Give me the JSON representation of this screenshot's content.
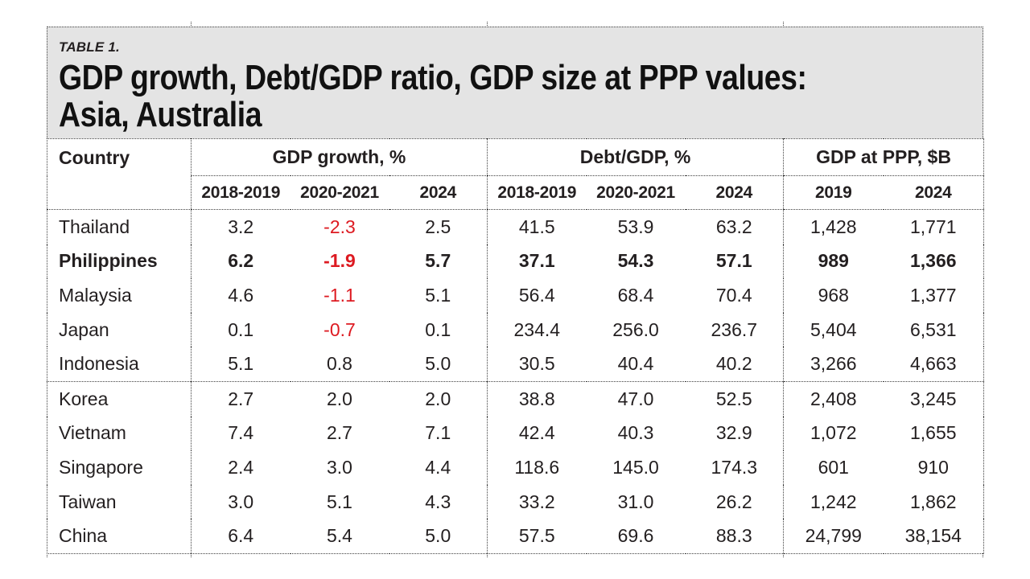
{
  "title_block": {
    "kicker": "TABLE 1.",
    "line1": "GDP growth, Debt/GDP ratio, GDP size at PPP values:",
    "line2": "Asia, Australia"
  },
  "header": {
    "country": "Country",
    "groups": [
      {
        "key": "gdp_growth",
        "label": "GDP growth, %",
        "cols": [
          "2018-2019",
          "2020-2021",
          "2024"
        ]
      },
      {
        "key": "debt_gdp",
        "label": "Debt/GDP, %",
        "cols": [
          "2018-2019",
          "2020-2021",
          "2024"
        ]
      },
      {
        "key": "gdp_ppp",
        "label": "GDP at PPP, $B",
        "cols": [
          "2019",
          "2024"
        ]
      }
    ]
  },
  "colors": {
    "negative_value": "#dd1a21",
    "title_background": "#e4e4e4",
    "text": "#231f20"
  },
  "chart_data": {
    "type": "table",
    "title": "GDP growth, Debt/GDP ratio, GDP size at PPP values: Asia, Australia",
    "kicker": "TABLE 1.",
    "column_groups": [
      "GDP growth, %",
      "Debt/GDP, %",
      "GDP at PPP, $B"
    ],
    "columns": [
      "Country",
      "GDP growth % 2018-2019",
      "GDP growth % 2020-2021",
      "GDP growth % 2024",
      "Debt/GDP % 2018-2019",
      "Debt/GDP % 2020-2021",
      "Debt/GDP % 2024",
      "GDP at PPP $B 2019",
      "GDP at PPP $B 2024"
    ],
    "rows": [
      {
        "country": "Thailand",
        "section": 1,
        "bold": false,
        "gdp_growth": [
          3.2,
          -2.3,
          2.5
        ],
        "debt_gdp": [
          41.5,
          53.9,
          63.2
        ],
        "gdp_ppp": [
          1428,
          1771
        ]
      },
      {
        "country": "Philippines",
        "section": 1,
        "bold": true,
        "gdp_growth": [
          6.2,
          -1.9,
          5.7
        ],
        "debt_gdp": [
          37.1,
          54.3,
          57.1
        ],
        "gdp_ppp": [
          989,
          1366
        ]
      },
      {
        "country": "Malaysia",
        "section": 1,
        "bold": false,
        "gdp_growth": [
          4.6,
          -1.1,
          5.1
        ],
        "debt_gdp": [
          56.4,
          68.4,
          70.4
        ],
        "gdp_ppp": [
          968,
          1377
        ]
      },
      {
        "country": "Japan",
        "section": 1,
        "bold": false,
        "gdp_growth": [
          0.1,
          -0.7,
          0.1
        ],
        "debt_gdp": [
          234.4,
          256.0,
          236.7
        ],
        "gdp_ppp": [
          5404,
          6531
        ]
      },
      {
        "country": "Indonesia",
        "section": 1,
        "bold": false,
        "gdp_growth": [
          5.1,
          0.8,
          5.0
        ],
        "debt_gdp": [
          30.5,
          40.4,
          40.2
        ],
        "gdp_ppp": [
          3266,
          4663
        ]
      },
      {
        "country": "Korea",
        "section": 2,
        "bold": false,
        "gdp_growth": [
          2.7,
          2.0,
          2.0
        ],
        "debt_gdp": [
          38.8,
          47.0,
          52.5
        ],
        "gdp_ppp": [
          2408,
          3245
        ]
      },
      {
        "country": "Vietnam",
        "section": 2,
        "bold": false,
        "gdp_growth": [
          7.4,
          2.7,
          7.1
        ],
        "debt_gdp": [
          42.4,
          40.3,
          32.9
        ],
        "gdp_ppp": [
          1072,
          1655
        ]
      },
      {
        "country": "Singapore",
        "section": 2,
        "bold": false,
        "gdp_growth": [
          2.4,
          3.0,
          4.4
        ],
        "debt_gdp": [
          118.6,
          145.0,
          174.3
        ],
        "gdp_ppp": [
          601,
          910
        ]
      },
      {
        "country": "Taiwan",
        "section": 2,
        "bold": false,
        "gdp_growth": [
          3.0,
          5.1,
          4.3
        ],
        "debt_gdp": [
          33.2,
          31.0,
          26.2
        ],
        "gdp_ppp": [
          1242,
          1862
        ]
      },
      {
        "country": "China",
        "section": 2,
        "bold": false,
        "gdp_growth": [
          6.4,
          5.4,
          5.0
        ],
        "debt_gdp": [
          57.5,
          69.6,
          88.3
        ],
        "gdp_ppp": [
          24799,
          38154
        ]
      }
    ]
  }
}
